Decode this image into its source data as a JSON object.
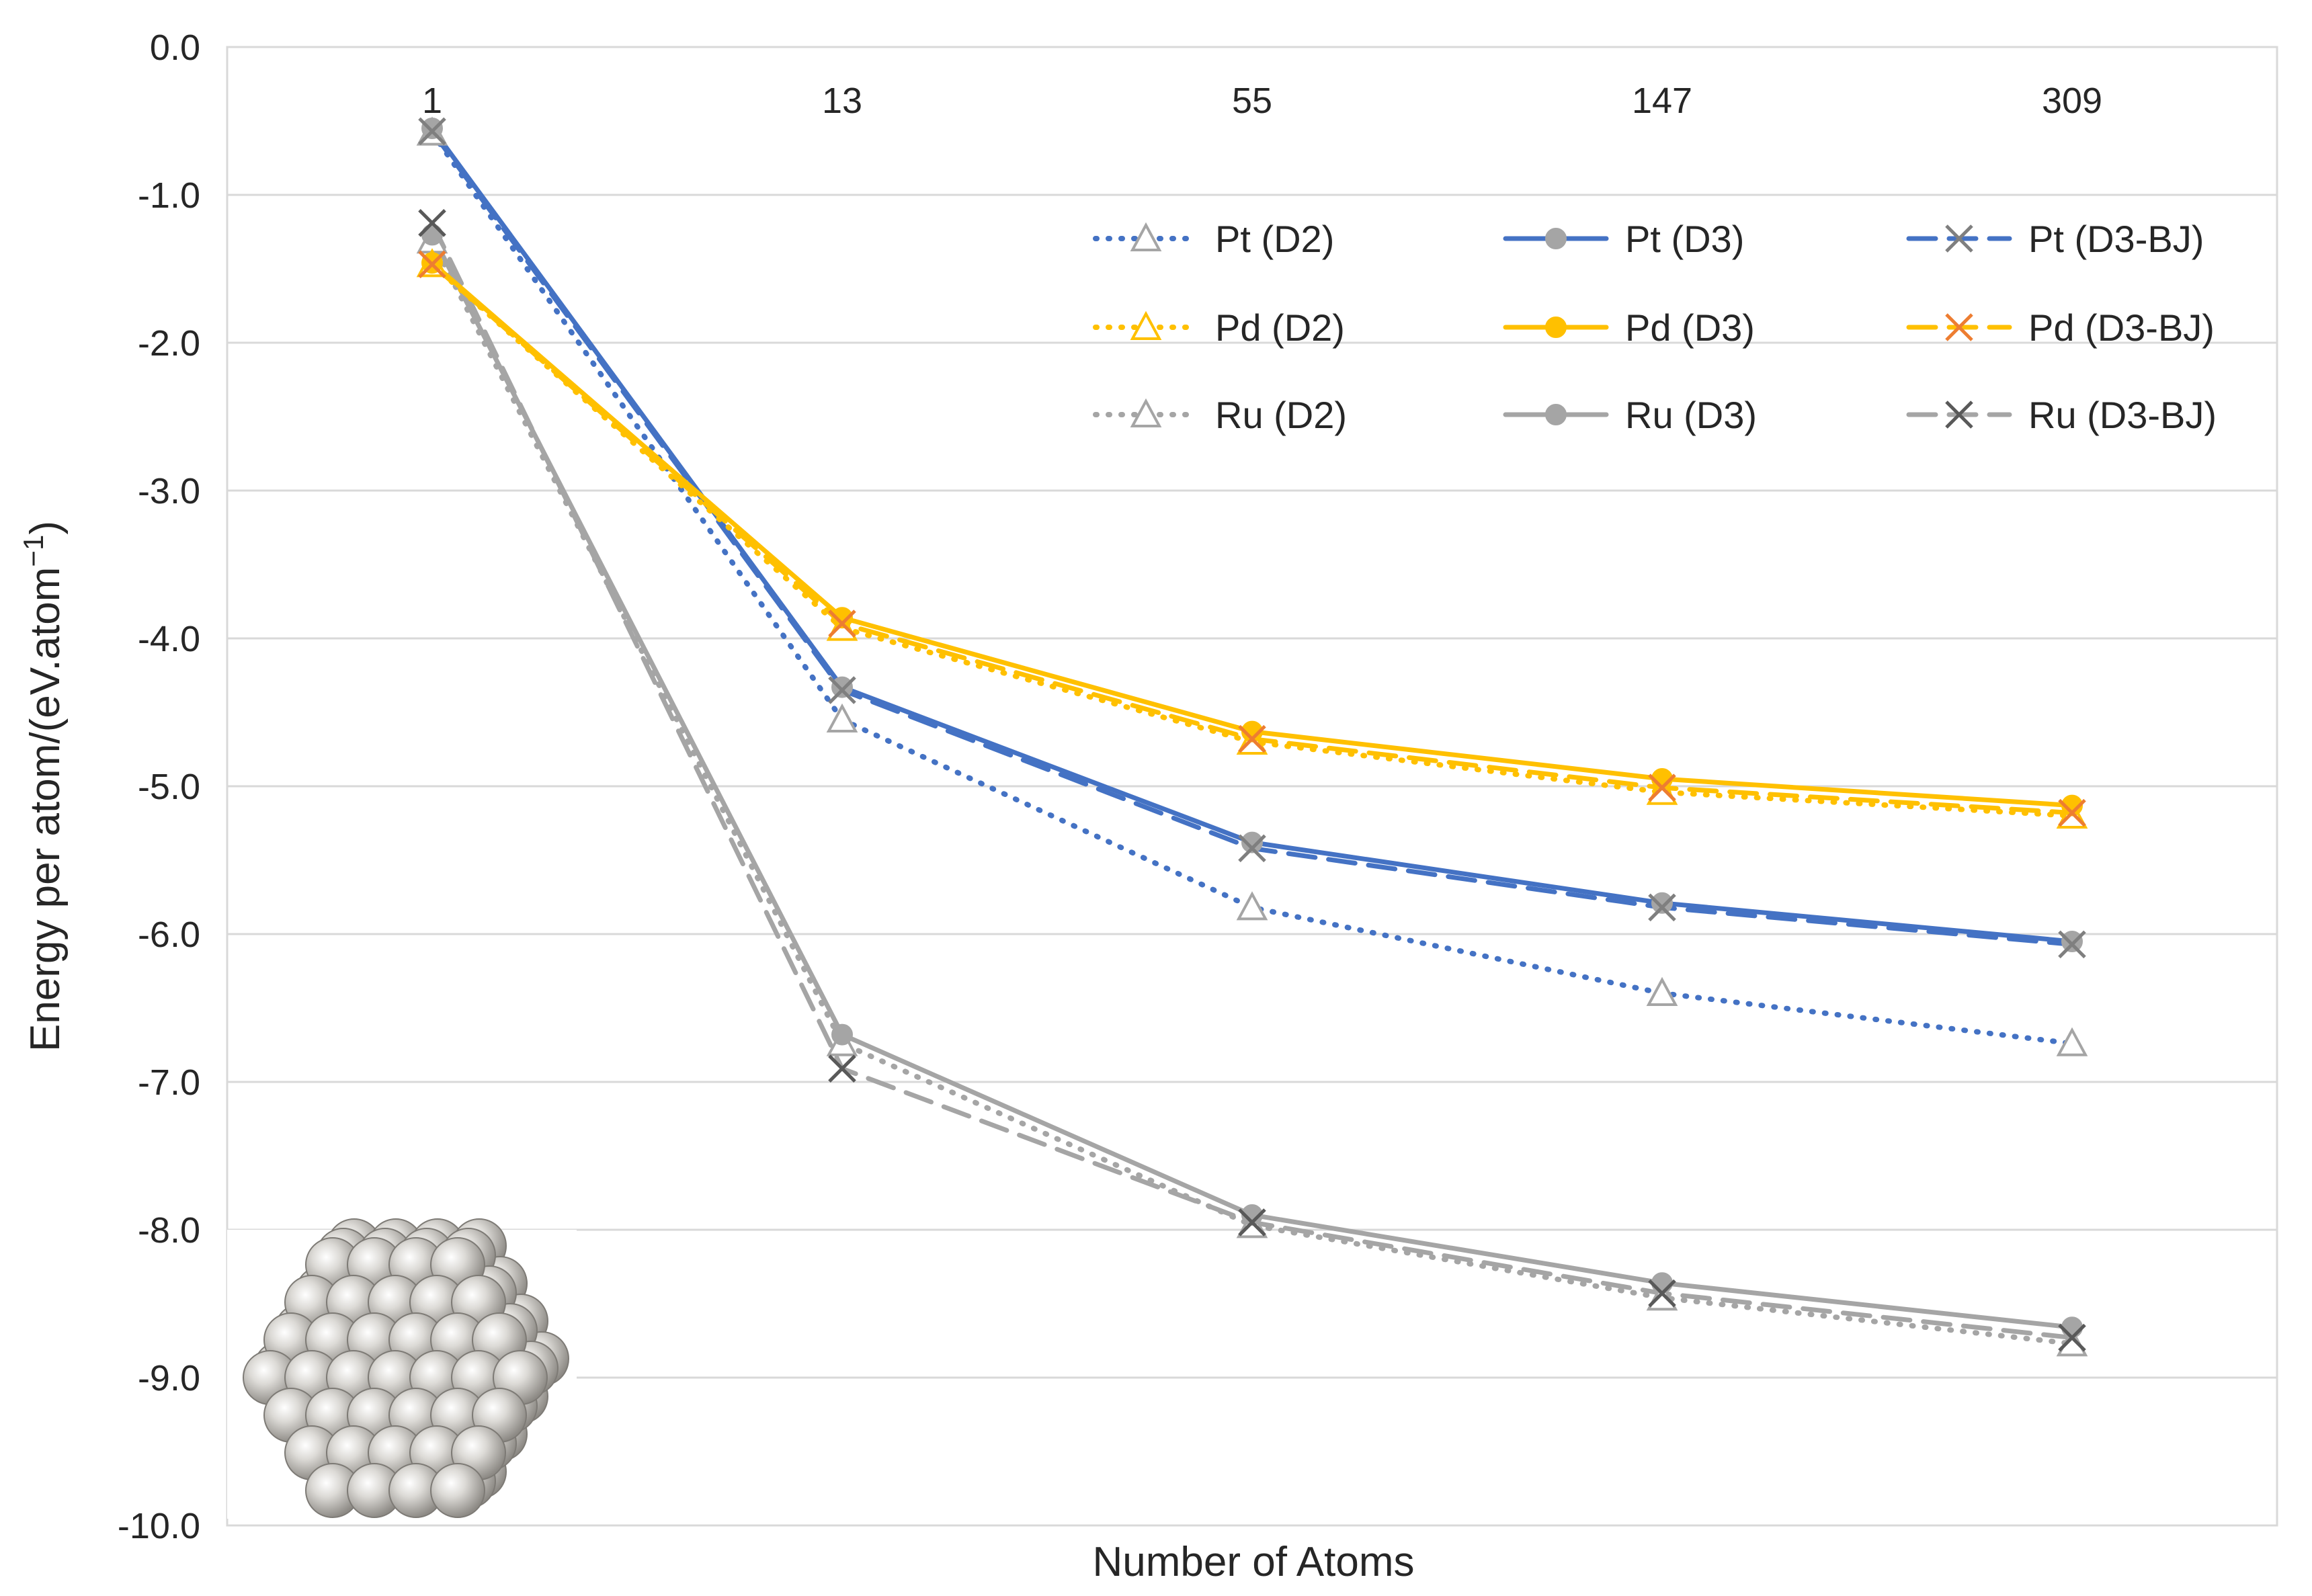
{
  "chart_data": {
    "type": "line",
    "title": "",
    "xlabel": "Number of Atoms",
    "ylabel_main": "Energy per atom/(eV.atom",
    "ylabel_sup": "−1",
    "ylabel_close": ")",
    "categories": [
      "1",
      "13",
      "55",
      "147",
      "309"
    ],
    "ylim": [
      -10.0,
      0.0
    ],
    "yticks": [
      "0.0",
      "-1.0",
      "-2.0",
      "-3.0",
      "-4.0",
      "-5.0",
      "-6.0",
      "-7.0",
      "-8.0",
      "-9.0",
      "-10.0"
    ],
    "grid": true,
    "x_tick_position": "top",
    "legend_position": "upper-right",
    "inset_image": "metal-nanocluster-spheres",
    "series": [
      {
        "name": "Pt (D2)",
        "color": "#4472C4",
        "dash": "dotted",
        "marker": "triangle",
        "values": [
          -0.58,
          -4.55,
          -5.82,
          -6.4,
          -6.74
        ]
      },
      {
        "name": "Pt (D3)",
        "color": "#4472C4",
        "dash": "solid",
        "marker": "circle",
        "values": [
          -0.55,
          -4.33,
          -5.38,
          -5.79,
          -6.05
        ]
      },
      {
        "name": "Pt (D3-BJ)",
        "color": "#4472C4",
        "dash": "dashed",
        "marker": "x",
        "values": [
          -0.57,
          -4.35,
          -5.42,
          -5.82,
          -6.07
        ]
      },
      {
        "name": "Pd (D2)",
        "color": "#FFC000",
        "dash": "dotted",
        "marker": "triangle",
        "values": [
          -1.47,
          -3.93,
          -4.7,
          -5.04,
          -5.2
        ]
      },
      {
        "name": "Pd (D3)",
        "color": "#FFC000",
        "dash": "solid",
        "marker": "circle",
        "values": [
          -1.46,
          -3.86,
          -4.63,
          -4.95,
          -5.13
        ]
      },
      {
        "name": "Pd (D3-BJ)",
        "color": "#FFC000",
        "dash": "dashed",
        "marker": "x",
        "values": [
          -1.47,
          -3.9,
          -4.68,
          -5.01,
          -5.18
        ]
      },
      {
        "name": "Ru (D2)",
        "color": "#A5A5A5",
        "dash": "dotted",
        "marker": "triangle",
        "values": [
          -1.31,
          -6.74,
          -7.97,
          -8.46,
          -8.77
        ]
      },
      {
        "name": "Ru (D3)",
        "color": "#A5A5A5",
        "dash": "solid",
        "marker": "circle",
        "values": [
          -1.27,
          -6.68,
          -7.9,
          -8.36,
          -8.66
        ]
      },
      {
        "name": "Ru (D3-BJ)",
        "color": "#A5A5A5",
        "dash": "dashed",
        "marker": "x",
        "values": [
          -1.19,
          -6.91,
          -7.95,
          -8.43,
          -8.73
        ]
      }
    ]
  }
}
